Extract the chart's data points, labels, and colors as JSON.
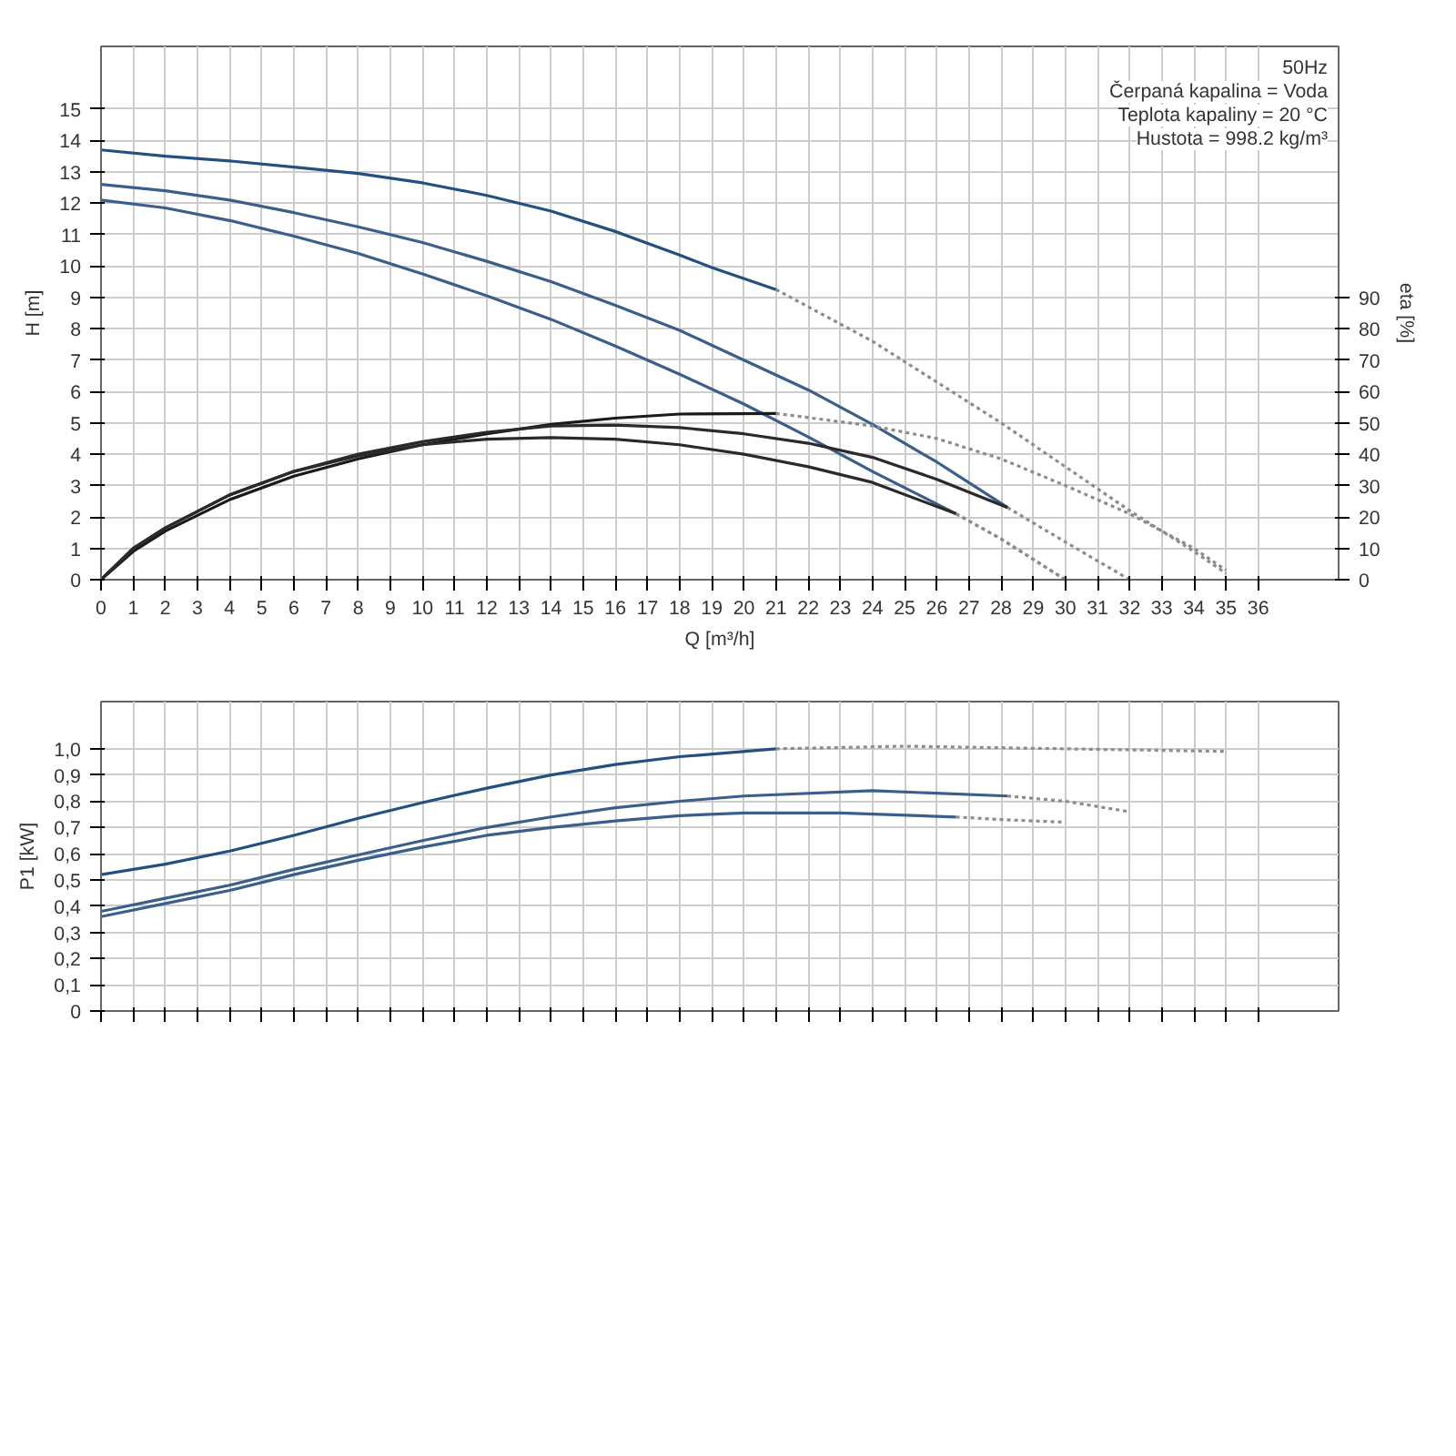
{
  "chart_data": [
    {
      "type": "line",
      "xlabel": "Q [m³/h]",
      "ylabel": "H [m]",
      "y2label": "eta [%]",
      "xlim": [
        0,
        38.5
      ],
      "ylim": [
        0,
        17
      ],
      "y2lim": [
        0,
        170
      ],
      "xticks": [
        0,
        1,
        2,
        3,
        4,
        5,
        6,
        7,
        8,
        9,
        10,
        11,
        12,
        13,
        14,
        15,
        16,
        17,
        18,
        19,
        20,
        21,
        22,
        23,
        24,
        25,
        26,
        27,
        28,
        29,
        30,
        31,
        32,
        33,
        34,
        35,
        36
      ],
      "yticks": [
        0,
        1,
        2,
        3,
        4,
        5,
        6,
        7,
        8,
        9,
        10,
        11,
        12,
        13,
        14,
        15
      ],
      "y2ticks": [
        0,
        10,
        20,
        30,
        40,
        50,
        60,
        70,
        80,
        90
      ],
      "grid": true,
      "annotations": [
        "50Hz",
        "Čerpaná kapalina = Voda",
        "Teplota kapaliny = 20 °C",
        "Hustota = 998.2 kg/m³"
      ],
      "series": [
        {
          "color": "#24507f",
          "line_style": "solid",
          "x": [
            0,
            2,
            4,
            6,
            8,
            10,
            12,
            14,
            16,
            18,
            19,
            21
          ],
          "values": [
            13.7,
            13.5,
            13.35,
            13.15,
            12.95,
            12.65,
            12.25,
            11.75,
            11.1,
            10.35,
            9.95,
            9.25
          ]
        },
        {
          "color": "#8c8c8c",
          "line_style": "dotted",
          "x": [
            21,
            24,
            26,
            28,
            30,
            32,
            34,
            35
          ],
          "values": [
            9.25,
            7.6,
            6.3,
            5.0,
            3.6,
            2.2,
            0.9,
            0.2
          ]
        },
        {
          "color": "#3a5f8a",
          "line_style": "solid",
          "x": [
            0,
            2,
            4,
            6,
            8,
            10,
            12,
            14,
            16,
            18,
            20,
            22,
            24,
            26,
            28.2
          ],
          "values": [
            12.6,
            12.4,
            12.1,
            11.7,
            11.25,
            10.75,
            10.15,
            9.5,
            8.75,
            7.95,
            7.0,
            6.05,
            4.95,
            3.75,
            2.3
          ]
        },
        {
          "color": "#8c8c8c",
          "line_style": "dotted",
          "x": [
            28.2,
            30,
            32
          ],
          "values": [
            2.3,
            1.2,
            0
          ]
        },
        {
          "color": "#3a5f8a",
          "line_style": "solid",
          "x": [
            0,
            2,
            4,
            6,
            8,
            10,
            12,
            14,
            16,
            18,
            20,
            22,
            24,
            26.6
          ],
          "values": [
            12.1,
            11.85,
            11.45,
            10.95,
            10.4,
            9.75,
            9.05,
            8.3,
            7.45,
            6.55,
            5.6,
            4.55,
            3.45,
            2.1
          ]
        },
        {
          "color": "#8c8c8c",
          "line_style": "dotted",
          "x": [
            26.6,
            28,
            30
          ],
          "values": [
            2.1,
            1.3,
            0
          ]
        },
        {
          "color": "#1a1a1a",
          "line_style": "solid",
          "axis": "y2",
          "x": [
            0,
            1,
            2,
            4,
            6,
            8,
            10,
            12,
            14,
            16,
            18,
            21
          ],
          "values": [
            0,
            9,
            15.5,
            25.5,
            33,
            38.5,
            43,
            46.5,
            49.5,
            51.5,
            52.8,
            53
          ]
        },
        {
          "color": "#8c8c8c",
          "line_style": "dotted",
          "axis": "y2",
          "x": [
            21,
            24,
            26,
            28,
            30,
            32,
            34,
            35
          ],
          "values": [
            53,
            49,
            45,
            38.5,
            30,
            21,
            10,
            3
          ]
        },
        {
          "color": "#2a2a2a",
          "line_style": "solid",
          "axis": "y2",
          "x": [
            0,
            1,
            2,
            4,
            6,
            8,
            10,
            12,
            14,
            16,
            18,
            20,
            22,
            24,
            26,
            28.2
          ],
          "values": [
            0,
            10,
            16.5,
            27,
            34.5,
            40,
            44,
            47,
            49,
            49.3,
            48.5,
            46.5,
            43.5,
            39,
            32,
            23
          ]
        },
        {
          "color": "#2a2a2a",
          "line_style": "solid",
          "axis": "y2",
          "x": [
            0,
            1,
            2,
            4,
            6,
            8,
            10,
            12,
            14,
            16,
            18,
            20,
            22,
            24,
            26.6
          ],
          "values": [
            0,
            10,
            16.5,
            27,
            34.5,
            39.5,
            43,
            44.8,
            45.3,
            44.8,
            43,
            40,
            36,
            31,
            21
          ]
        },
        {
          "color": "#8c8c8c",
          "line_style": "dotted",
          "axis": "y2",
          "x": [
            26.6,
            28,
            30
          ],
          "values": [
            21,
            13,
            0
          ]
        }
      ]
    },
    {
      "type": "line",
      "ylabel": "P1 [kW]",
      "xlim": [
        0,
        38.5
      ],
      "ylim": [
        0,
        1.18
      ],
      "tick_labels": "y",
      "grid": true,
      "xticks": [
        0,
        1,
        2,
        3,
        4,
        5,
        6,
        7,
        8,
        9,
        10,
        11,
        12,
        13,
        14,
        15,
        16,
        17,
        18,
        19,
        20,
        21,
        22,
        23,
        24,
        25,
        26,
        27,
        28,
        29,
        30,
        31,
        32,
        33,
        34,
        35,
        36
      ],
      "yticks": [
        0,
        {
          "value": 0.1,
          "label": "0,1"
        },
        {
          "value": 0.2,
          "label": "0,2"
        },
        {
          "value": 0.3,
          "label": "0,3"
        },
        {
          "value": 0.4,
          "label": "0,4"
        },
        {
          "value": 0.5,
          "label": "0,5"
        },
        {
          "value": 0.6,
          "label": "0,6"
        },
        {
          "value": 0.7,
          "label": "0,7"
        },
        {
          "value": 0.8,
          "label": "0,8"
        },
        {
          "value": 0.9,
          "label": "0,9"
        },
        {
          "value": 1.0,
          "label": "1,0"
        }
      ],
      "series": [
        {
          "color": "#24507f",
          "line_style": "solid",
          "x": [
            0,
            2,
            4,
            6,
            8,
            10,
            12,
            14,
            16,
            18,
            21
          ],
          "values": [
            0.52,
            0.56,
            0.61,
            0.67,
            0.735,
            0.795,
            0.85,
            0.9,
            0.94,
            0.97,
            1.0
          ]
        },
        {
          "color": "#8c8c8c",
          "line_style": "dotted",
          "x": [
            21,
            25,
            30,
            35
          ],
          "values": [
            1.0,
            1.01,
            1.0,
            0.99
          ]
        },
        {
          "color": "#3a5f8a",
          "line_style": "solid",
          "x": [
            0,
            2,
            4,
            6,
            8,
            10,
            12,
            14,
            16,
            18,
            20,
            24,
            28.2
          ],
          "values": [
            0.38,
            0.43,
            0.48,
            0.54,
            0.595,
            0.65,
            0.7,
            0.74,
            0.775,
            0.8,
            0.82,
            0.84,
            0.82
          ]
        },
        {
          "color": "#8c8c8c",
          "line_style": "dotted",
          "x": [
            28.2,
            30,
            32
          ],
          "values": [
            0.82,
            0.8,
            0.76
          ]
        },
        {
          "color": "#3a5f8a",
          "line_style": "solid",
          "x": [
            0,
            2,
            4,
            6,
            8,
            10,
            12,
            14,
            16,
            18,
            20,
            23,
            26.6
          ],
          "values": [
            0.36,
            0.41,
            0.46,
            0.52,
            0.575,
            0.625,
            0.67,
            0.7,
            0.725,
            0.745,
            0.755,
            0.755,
            0.74
          ]
        },
        {
          "color": "#8c8c8c",
          "line_style": "dotted",
          "x": [
            26.6,
            28,
            30
          ],
          "values": [
            0.74,
            0.73,
            0.72
          ]
        }
      ]
    }
  ]
}
